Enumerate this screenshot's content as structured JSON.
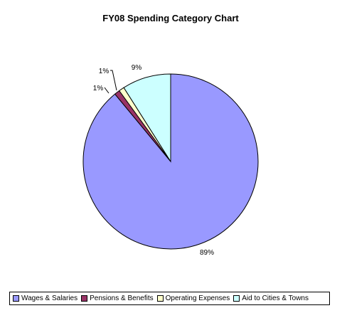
{
  "chart_data": {
    "type": "pie",
    "title": "FY08 Spending Category Chart",
    "slices": [
      {
        "name": "Wages & Salaries",
        "value": 89,
        "label": "89%",
        "color": "#9999ff"
      },
      {
        "name": "Pensions & Benefits",
        "value": 1,
        "label": "1%",
        "color": "#993366"
      },
      {
        "name": "Operating Expenses",
        "value": 1,
        "label": "1%",
        "color": "#ffffcc"
      },
      {
        "name": "Aid to Cities & Towns",
        "value": 9,
        "label": "9%",
        "color": "#ccffff"
      }
    ],
    "legend_position": "bottom"
  }
}
